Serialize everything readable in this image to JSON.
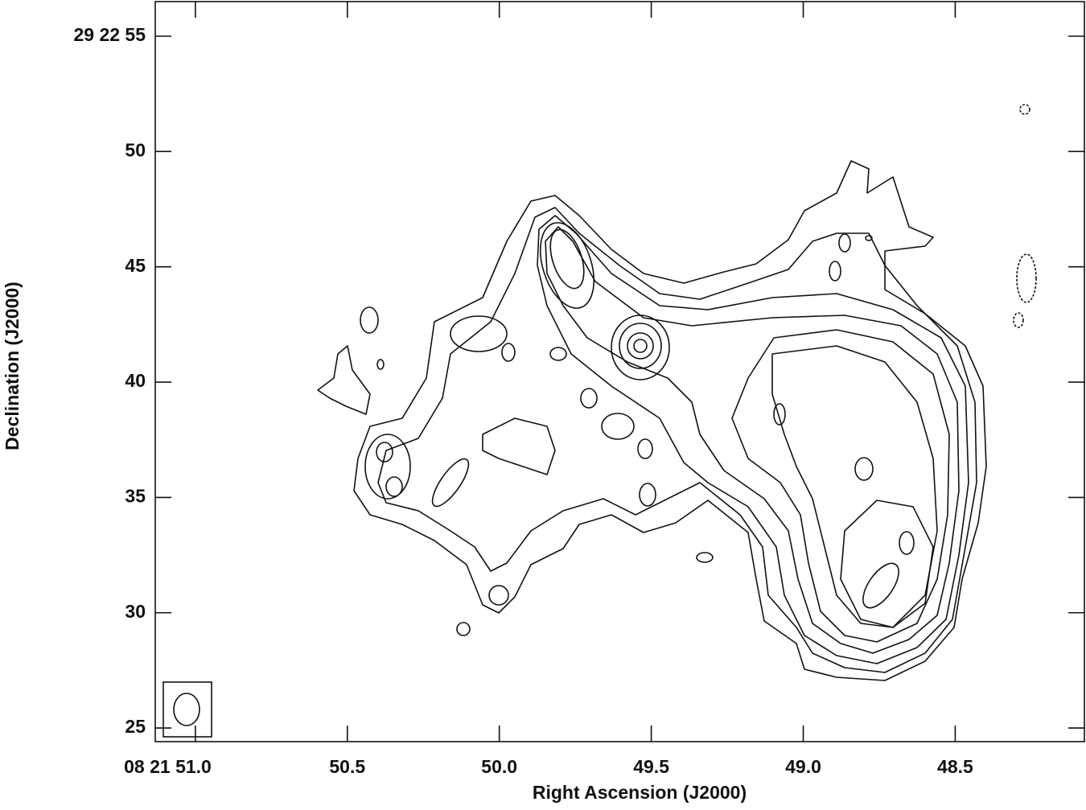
{
  "chart_data": {
    "type": "contour",
    "x_axis_label": "Right Ascension (J2000)",
    "y_axis_label": "Declination (J2000)",
    "xlim": [
      51.132,
      48.075
    ],
    "ylim": [
      24.41,
      56.5
    ],
    "xticks": [
      {
        "value": 51.0,
        "label": "08 21 51.0"
      },
      50.5,
      {
        "value": 50.0,
        "label": "50.0"
      },
      49.5,
      {
        "value": 49.0,
        "label": "49.0"
      },
      48.5
    ],
    "yticks": [
      {
        "value": 55,
        "label": "29 22 55"
      },
      50,
      45,
      40,
      35,
      30,
      25
    ]
  }
}
